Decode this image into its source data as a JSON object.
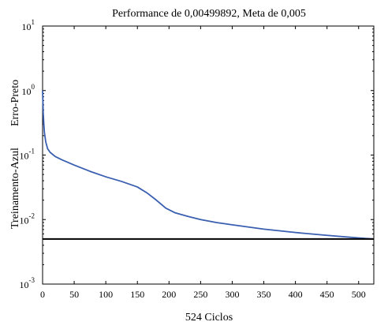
{
  "chart_data": {
    "type": "line",
    "title": "Performance de 0,00499892, Meta de 0,005",
    "xlabel": "524 Ciclos",
    "ylabel_lines": [
      "Treinamento-Azul",
      "Erro-Preto"
    ],
    "xlim": [
      0,
      524
    ],
    "ylim": [
      0.001,
      10
    ],
    "yscale": "log",
    "x_ticks": [
      0,
      50,
      100,
      150,
      200,
      250,
      300,
      350,
      400,
      450,
      500
    ],
    "y_ticks": [
      {
        "value": 0.001,
        "base": "10",
        "exp": "-3"
      },
      {
        "value": 0.01,
        "base": "10",
        "exp": "-2"
      },
      {
        "value": 0.1,
        "base": "10",
        "exp": "-1"
      },
      {
        "value": 1,
        "base": "10",
        "exp": "0"
      },
      {
        "value": 10,
        "base": "10",
        "exp": "1"
      }
    ],
    "grid": false,
    "series": [
      {
        "name": "Treinamento",
        "color": "#3a5fb0",
        "x": [
          0,
          1,
          2,
          3,
          5,
          8,
          12,
          20,
          30,
          50,
          75,
          100,
          125,
          150,
          165,
          180,
          195,
          210,
          230,
          250,
          275,
          300,
          350,
          400,
          450,
          500,
          524
        ],
        "y": [
          1.0,
          0.45,
          0.3,
          0.22,
          0.16,
          0.125,
          0.11,
          0.095,
          0.085,
          0.07,
          0.056,
          0.046,
          0.039,
          0.032,
          0.026,
          0.02,
          0.015,
          0.0127,
          0.0112,
          0.01,
          0.009,
          0.0083,
          0.0071,
          0.0063,
          0.0057,
          0.0052,
          0.005
        ]
      },
      {
        "name": "Erro (Meta)",
        "color": "#000000",
        "x": [
          0,
          524
        ],
        "y": [
          0.005,
          0.005
        ]
      }
    ]
  }
}
